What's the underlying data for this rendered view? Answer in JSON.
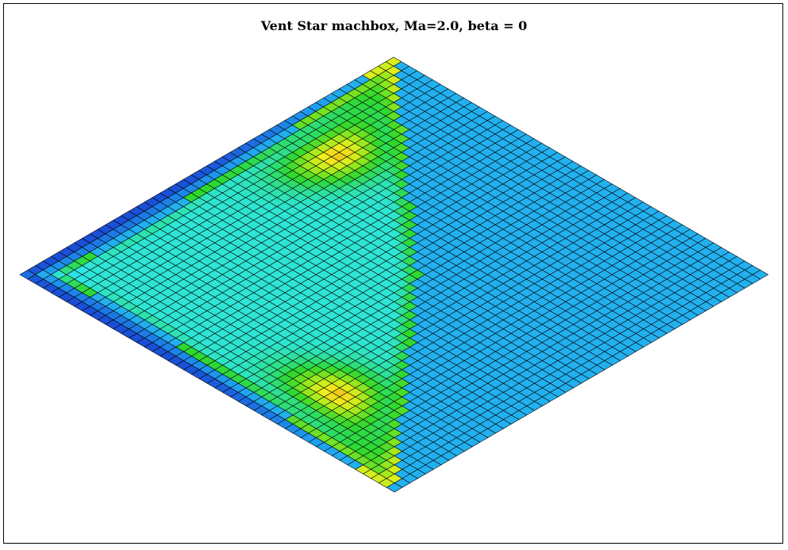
{
  "title": "Vent Star machbox, Ma=2.0, beta = 0",
  "mesh": {
    "divisions": 48,
    "line_color": "#000000"
  },
  "colormap": [
    {
      "level": 0.0,
      "color": "#1a4fd6"
    },
    {
      "level": 0.2,
      "color": "#1e9ef0"
    },
    {
      "level": 0.4,
      "color": "#2ee6e6"
    },
    {
      "level": 0.6,
      "color": "#2ed82e"
    },
    {
      "level": 0.75,
      "color": "#9be81e"
    },
    {
      "level": 0.88,
      "color": "#f0f01e"
    },
    {
      "level": 1.0,
      "color": "#f0701e"
    }
  ]
}
